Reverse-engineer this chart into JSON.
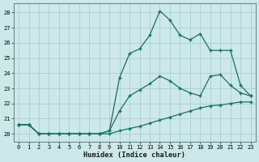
{
  "xlabel": "Humidex (Indice chaleur)",
  "bg_color": "#cce8e8",
  "grid_color": "#aacfcf",
  "line_color": "#1a7060",
  "xlim": [
    -0.5,
    23.5
  ],
  "ylim": [
    19.5,
    28.6
  ],
  "xticks": [
    0,
    1,
    2,
    3,
    4,
    5,
    6,
    7,
    8,
    9,
    10,
    11,
    12,
    13,
    14,
    15,
    16,
    17,
    18,
    19,
    20,
    21,
    22,
    23
  ],
  "yticks": [
    20,
    21,
    22,
    23,
    24,
    25,
    26,
    27,
    28
  ],
  "line1_x": [
    0,
    1,
    2,
    3,
    4,
    5,
    6,
    7,
    8,
    9,
    10,
    11,
    12,
    13,
    14,
    15,
    16,
    17,
    18,
    19,
    20,
    21,
    22,
    23
  ],
  "line1_y": [
    20.6,
    20.6,
    20.0,
    20.0,
    20.0,
    20.0,
    20.0,
    20.0,
    20.0,
    20.0,
    20.2,
    20.35,
    20.5,
    20.7,
    20.9,
    21.1,
    21.3,
    21.5,
    21.7,
    21.85,
    21.9,
    22.0,
    22.1,
    22.1
  ],
  "line2_x": [
    0,
    1,
    2,
    3,
    4,
    5,
    6,
    7,
    8,
    9,
    10,
    11,
    12,
    13,
    14,
    15,
    16,
    17,
    18,
    19,
    20,
    21,
    22,
    23
  ],
  "line2_y": [
    20.6,
    20.6,
    20.0,
    20.0,
    20.0,
    20.0,
    20.0,
    20.0,
    20.0,
    20.2,
    21.5,
    22.5,
    22.9,
    23.3,
    23.8,
    23.5,
    23.0,
    22.7,
    22.5,
    23.8,
    23.9,
    23.2,
    22.7,
    22.5
  ],
  "line3_x": [
    0,
    1,
    2,
    3,
    4,
    5,
    6,
    7,
    8,
    9,
    10,
    11,
    12,
    13,
    14,
    15,
    16,
    17,
    18,
    19,
    20,
    21,
    22,
    23
  ],
  "line3_y": [
    20.6,
    20.6,
    20.0,
    20.0,
    20.0,
    20.0,
    20.0,
    20.0,
    20.0,
    20.2,
    23.7,
    25.3,
    25.6,
    26.5,
    28.1,
    27.5,
    26.5,
    26.2,
    26.6,
    25.5,
    25.5,
    25.5,
    23.2,
    22.5
  ]
}
